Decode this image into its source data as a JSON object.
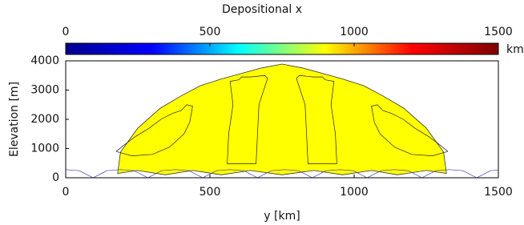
{
  "chart_data": {
    "type": "area",
    "title": "Depositional x",
    "colorbar": {
      "unit": "km",
      "lim": [
        0,
        1500
      ],
      "ticks": [
        0,
        500,
        1000,
        1500
      ],
      "colors": [
        "#00008f",
        "#0000ff",
        "#00ffff",
        "#ffff00",
        "#ff0000",
        "#800000"
      ]
    },
    "xlabel": "y [km]",
    "ylabel": "Elevation [m]",
    "xlim": [
      0,
      1500
    ],
    "xticks": [
      0,
      500,
      1000,
      1500
    ],
    "ylim": [
      0,
      4000
    ],
    "yticks": [
      0,
      1000,
      2000,
      3000,
      4000
    ],
    "grid": false,
    "series": [
      {
        "color": "#333333",
        "fill": "#ffff00",
        "x": [
          180,
          190,
          250,
          328,
          400,
          467,
          540,
          605,
          680,
          750,
          820,
          895,
          960,
          1033,
          1100,
          1172,
          1250,
          1310,
          1320,
          1250,
          1150,
          1060,
          960,
          860,
          750,
          640,
          540,
          440,
          345,
          250
        ],
        "y": [
          150,
          880,
          1700,
          2380,
          2800,
          3150,
          3380,
          3560,
          3760,
          3890,
          3760,
          3560,
          3380,
          3150,
          2800,
          2380,
          1700,
          880,
          150,
          250,
          100,
          250,
          100,
          250,
          100,
          250,
          100,
          250,
          100,
          250
        ]
      },
      {
        "color": "#3b3bb0",
        "x": [
          0,
          47.5,
          95,
          142.5,
          190,
          237.5,
          285,
          332.5,
          380,
          427.5,
          475,
          522.5,
          570,
          617.5,
          665,
          712.5,
          760,
          807.5,
          855,
          902.5,
          950,
          997.5,
          1045,
          1092.5,
          1140,
          1187.5,
          1235,
          1282.5,
          1330,
          1377.5,
          1425,
          1472.5,
          1500
        ],
        "y": [
          280,
          240,
          0,
          240,
          280,
          240,
          0,
          240,
          280,
          240,
          0,
          240,
          280,
          240,
          0,
          240,
          280,
          240,
          0,
          240,
          280,
          240,
          0,
          240,
          280,
          240,
          0,
          240,
          280,
          240,
          0,
          240,
          265
        ]
      },
      {
        "color": "#222222",
        "x": [
          175,
          230,
          300,
          360,
          410,
          430,
          440,
          420,
          400,
          370,
          330,
          290,
          240,
          200,
          175
        ],
        "y": [
          900,
          750,
          800,
          1050,
          1500,
          1900,
          2450,
          2500,
          2300,
          2200,
          2000,
          1700,
          1400,
          1100,
          900
        ]
      },
      {
        "color": "#222222",
        "x": [
          570,
          600,
          610,
          640,
          690,
          700,
          670,
          665,
          660,
          560,
          565,
          580,
          570
        ],
        "y": [
          3300,
          3350,
          3450,
          3450,
          3500,
          3400,
          2500,
          1500,
          480,
          480,
          1500,
          2500,
          3300
        ]
      },
      {
        "color": "#222222",
        "x": [
          930,
          900,
          890,
          860,
          810,
          800,
          830,
          835,
          840,
          940,
          935,
          920,
          930
        ],
        "y": [
          3300,
          3350,
          3450,
          3450,
          3500,
          3400,
          2500,
          1500,
          480,
          480,
          1500,
          2500,
          3300
        ]
      },
      {
        "color": "#222222",
        "x": [
          1325,
          1270,
          1200,
          1140,
          1090,
          1070,
          1060,
          1080,
          1100,
          1130,
          1170,
          1210,
          1260,
          1300,
          1325
        ],
        "y": [
          900,
          750,
          800,
          1050,
          1500,
          1900,
          2450,
          2500,
          2300,
          2200,
          2000,
          1700,
          1400,
          1100,
          900
        ]
      }
    ]
  }
}
